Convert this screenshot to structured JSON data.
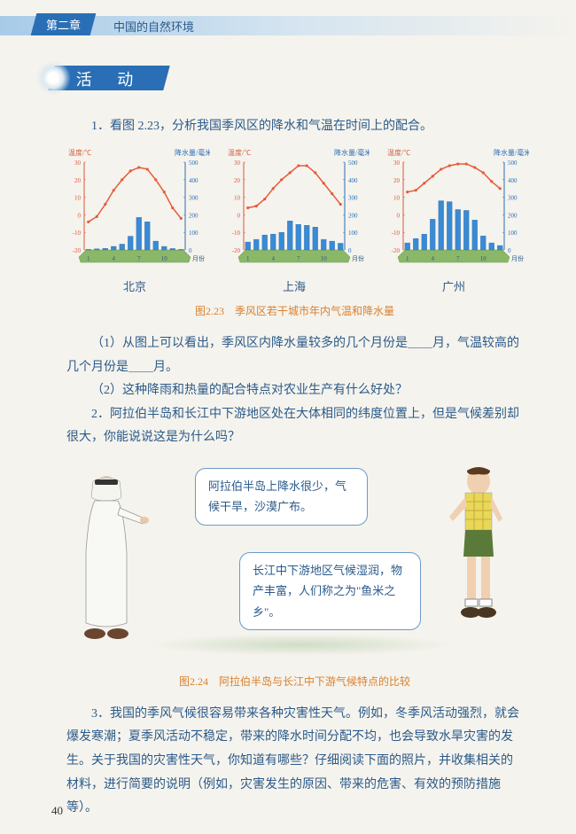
{
  "header": {
    "chapter": "第二章",
    "title": "中国的自然环境"
  },
  "activity_label": "活 动",
  "q1_intro": "1．看图 2.23，分析我国季风区的降水和气温在时间上的配合。",
  "charts": {
    "axis_temp_label": "温度/℃",
    "axis_precip_label": "降水量/毫米",
    "x_label": "月份",
    "temp_ticks": [
      -20,
      -10,
      0,
      10,
      20,
      30
    ],
    "precip_ticks": [
      0,
      100,
      200,
      300,
      400,
      500
    ],
    "x_ticks": [
      1,
      4,
      7,
      10
    ],
    "temp_color": "#e85a3a",
    "bar_color": "#3a8ad4",
    "bar_outline": "#2a6fb5",
    "grid_color": "#b8d0e8",
    "base_color": "#8ab868",
    "cities": [
      {
        "name": "北京",
        "temp": [
          -4,
          -1,
          6,
          14,
          20,
          25,
          27,
          26,
          20,
          13,
          4,
          -2
        ],
        "precip": [
          3,
          6,
          9,
          20,
          33,
          78,
          185,
          160,
          50,
          20,
          8,
          3
        ]
      },
      {
        "name": "上海",
        "temp": [
          4,
          5,
          9,
          15,
          20,
          24,
          28,
          28,
          24,
          18,
          12,
          6
        ],
        "precip": [
          45,
          60,
          85,
          90,
          100,
          165,
          145,
          140,
          130,
          60,
          50,
          38
        ]
      },
      {
        "name": "广州",
        "temp": [
          13,
          14,
          18,
          22,
          26,
          28,
          29,
          29,
          27,
          24,
          19,
          15
        ],
        "precip": [
          40,
          65,
          90,
          175,
          280,
          275,
          230,
          225,
          170,
          80,
          40,
          25
        ]
      }
    ]
  },
  "fig223_caption": "图2.23　季风区若干城市年内气温和降水量",
  "q1_sub1": "（1）从图上可以看出，季风区内降水量较多的几个月份是＿＿月，气温较高的几个月份是＿＿月。",
  "q1_sub2": "（2）这种降雨和热量的配合特点对农业生产有什么好处？",
  "q2": "2．阿拉伯半岛和长江中下游地区处在大体相同的纬度位置上，但是气候差别却很大，你能说说这是为什么吗？",
  "bubble1_text": "阿拉伯半岛上降水很少，气候干旱，沙漠广布。",
  "bubble2_text": "长江中下游地区气候湿润，物产丰富，人们称之为\"鱼米之乡\"。",
  "fig224_caption": "图2.24　阿拉伯半岛与长江中下游气候特点的比较",
  "q3": "3．我国的季风气候很容易带来各种灾害性天气。例如，冬季风活动强烈，就会爆发寒潮；夏季风活动不稳定，带来的降水时间分配不均，也会导致水旱灾害的发生。关于我国的灾害性天气，你知道有哪些？仔细阅读下面的照片，并收集相关的材料，进行简要的说明（例如，灾害发生的原因、带来的危害、有效的预防措施等）。",
  "page_number": "40"
}
